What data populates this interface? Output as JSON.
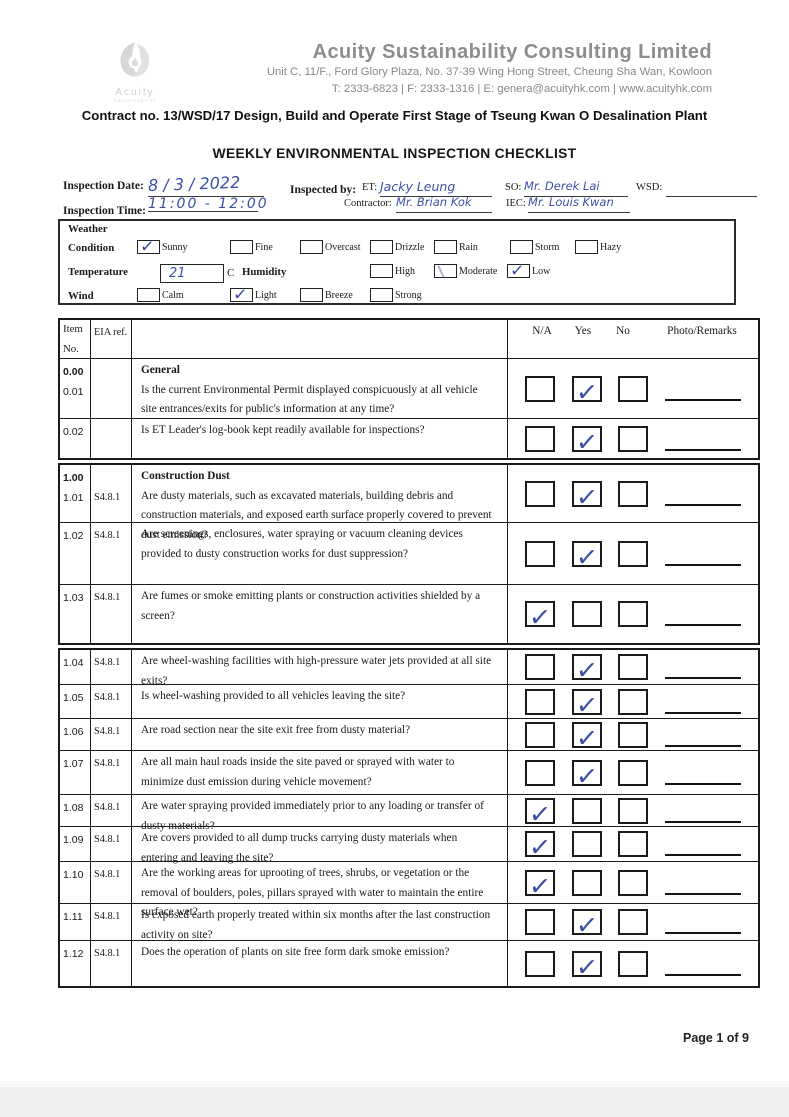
{
  "company": {
    "name": "Acuity Sustainability Consulting Limited",
    "address": "Unit C, 11/F., Ford Glory Plaza, No. 37-39 Wing Hong Street, Cheung Sha Wan, Kowloon",
    "contact": "T: 2333-6823 | F: 2333-1316 | E: genera@acuityhk.com | www.acuityhk.com",
    "logo_text": "Acuity",
    "logo_subtext": "Sustainability"
  },
  "contract_line": "Contract no.  13/WSD/17 Design, Build and Operate First Stage of Tseung Kwan O Desalination Plant",
  "title": "WEEKLY ENVIRONMENTAL INSPECTION CHECKLIST",
  "fields": {
    "inspection_date_label": "Inspection Date:",
    "inspection_date_value": "8 / 3 / 2022",
    "inspection_time_label": "Inspection Time:",
    "inspection_time_value": "11:00 - 12:00",
    "inspected_by_label": "Inspected by:",
    "et_label": "ET:",
    "et_value": "Jacky Leung",
    "contractor_label": "Contractor:",
    "contractor_value": "Mr. Brian Kok",
    "so_label": "SO:",
    "so_value": "Mr. Derek Lai",
    "iec_label": "IEC:",
    "iec_value": "Mr. Louis Kwan",
    "wsd_label": "WSD:",
    "wsd_value": ""
  },
  "weather": {
    "box_label": "Weather",
    "condition_label": "Condition",
    "condition_options": [
      {
        "label": "Sunny",
        "checked": true
      },
      {
        "label": "Fine",
        "checked": false
      },
      {
        "label": "Overcast",
        "checked": false
      },
      {
        "label": "Drizzle",
        "checked": false
      },
      {
        "label": "Rain",
        "checked": false
      },
      {
        "label": "Storm",
        "checked": false
      },
      {
        "label": "Hazy",
        "checked": false
      }
    ],
    "temperature_label": "Temperature",
    "temperature_value": "21",
    "temperature_unit": "C",
    "humidity_label": "Humidity",
    "humidity_options": [
      {
        "label": "High",
        "checked": false
      },
      {
        "label": "Moderate",
        "checked": false,
        "faint_mark": true
      },
      {
        "label": "Low",
        "checked": true
      }
    ],
    "wind_label": "Wind",
    "wind_options": [
      {
        "label": "Calm",
        "checked": false
      },
      {
        "label": "Light",
        "checked": true
      },
      {
        "label": "Breeze",
        "checked": false
      },
      {
        "label": "Strong",
        "checked": false
      }
    ]
  },
  "table": {
    "headers": {
      "item_line1": "Item",
      "item_line2": "No.",
      "eia_ref": "EIA ref.",
      "na": "N/A",
      "yes": "Yes",
      "no": "No",
      "photo": "Photo/Remarks"
    },
    "blocks": [
      {
        "rows": [
          {
            "section_no": "0.00",
            "section_title": "General",
            "item_no": "0.01",
            "eia_ref": "",
            "question": "Is the current Environmental Permit displayed conspicuously at all vehicle site entrances/exits for public's information at any time?",
            "answer": "yes"
          },
          {
            "item_no": "0.02",
            "eia_ref": "",
            "question": "Is ET Leader's log-book kept readily available for inspections?",
            "answer": "yes"
          }
        ]
      },
      {
        "rows": [
          {
            "section_no": "1.00",
            "section_title": "Construction Dust",
            "item_no": "1.01",
            "eia_ref": "S4.8.1",
            "question": "Are dusty materials, such as excavated materials, building debris and construction materials, and exposed earth surface properly covered to prevent dust emission?",
            "answer": "yes"
          },
          {
            "item_no": "1.02",
            "eia_ref": "S4.8.1",
            "question": "Are screenings, enclosures, water spraying or vacuum cleaning devices provided to dusty construction works for dust suppression?",
            "answer": "yes"
          },
          {
            "item_no": "1.03",
            "eia_ref": "S4.8.1",
            "question": "Are fumes or smoke emitting plants or construction activities shielded by a screen?",
            "answer": "na"
          }
        ]
      },
      {
        "rows": [
          {
            "item_no": "1.04",
            "eia_ref": "S4.8.1",
            "question": "Are wheel-washing facilities with high-pressure water jets provided at all site exits?",
            "answer": "yes"
          },
          {
            "item_no": "1.05",
            "eia_ref": "S4.8.1",
            "question": "Is wheel-washing provided to all vehicles leaving the site?",
            "answer": "yes"
          },
          {
            "item_no": "1.06",
            "eia_ref": "S4.8.1",
            "question": "Are road section near the site exit free from dusty material?",
            "answer": "yes"
          },
          {
            "item_no": "1.07",
            "eia_ref": "S4.8.1",
            "question": "Are all main haul roads inside the site paved or sprayed with water to minimize dust emission during vehicle movement?",
            "answer": "yes"
          },
          {
            "item_no": "1.08",
            "eia_ref": "S4.8.1",
            "question": "Are water spraying provided immediately prior to any loading or transfer of dusty materials?",
            "answer": "na"
          },
          {
            "item_no": "1.09",
            "eia_ref": "S4.8.1",
            "question": "Are covers provided to all dump trucks carrying dusty materials when entering and leaving the site?",
            "answer": "na"
          },
          {
            "item_no": "1.10",
            "eia_ref": "S4.8.1",
            "question": "Are the working areas for uprooting of trees, shrubs, or vegetation or the removal of boulders, poles, pillars sprayed with water to maintain the entire surface wet?",
            "answer": "na"
          },
          {
            "item_no": "1.11",
            "eia_ref": "S4.8.1",
            "question": "Is exposed earth properly treated within six months after the last construction activity on site?",
            "answer": "yes"
          },
          {
            "item_no": "1.12",
            "eia_ref": "S4.8.1",
            "question": "Does the operation of plants on site free form dark smoke emission?",
            "answer": "yes"
          }
        ]
      }
    ]
  },
  "footer": {
    "page": "Page 1 of 9"
  }
}
